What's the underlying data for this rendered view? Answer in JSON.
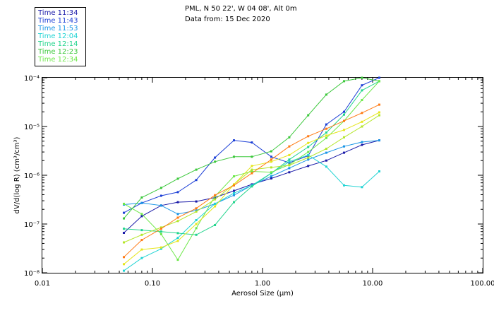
{
  "header": {
    "line1": "PML, N 50 22', W 04 08', Alt 0m",
    "line2": "Data from: 15 Dec 2020"
  },
  "chart_data": {
    "type": "line",
    "xscale": "log",
    "yscale": "log",
    "xlabel": "Aerosol Size (µm)",
    "ylabel": "dV/d(log R) (cm³/cm³)",
    "xlim": [
      0.01,
      100
    ],
    "ylim": [
      1e-08,
      0.0001
    ],
    "xticks": [
      {
        "value": 0.01,
        "label": "0.01"
      },
      {
        "value": 0.1,
        "label": "0.10"
      },
      {
        "value": 1,
        "label": "1.00"
      },
      {
        "value": 10,
        "label": "10.00"
      },
      {
        "value": 100,
        "label": "100.00"
      }
    ],
    "yticks": [
      {
        "value": 1e-08,
        "label": "10⁻⁸"
      },
      {
        "value": 1e-07,
        "label": "10⁻⁷"
      },
      {
        "value": 1e-06,
        "label": "10⁻⁶"
      },
      {
        "value": 1e-05,
        "label": "10⁻⁵"
      },
      {
        "value": 0.0001,
        "label": "10⁻⁴"
      }
    ],
    "legend_position": "top-left-outside",
    "grid": false,
    "series": [
      {
        "name": "Time 11:34",
        "color": "#1a1aa8",
        "points": [
          [
            0.055,
            6.6e-08
          ],
          [
            0.08,
            1.45e-07
          ],
          [
            0.12,
            2.4e-07
          ],
          [
            0.17,
            2.8e-07
          ],
          [
            0.25,
            2.9e-07
          ],
          [
            0.37,
            3.5e-07
          ],
          [
            0.55,
            4.8e-07
          ],
          [
            0.8,
            6.5e-07
          ],
          [
            1.2,
            8.6e-07
          ],
          [
            1.75,
            1.15e-06
          ],
          [
            2.6,
            1.55e-06
          ],
          [
            3.8,
            2e-06
          ],
          [
            5.5,
            2.9e-06
          ],
          [
            8,
            4.2e-06
          ],
          [
            11.5,
            5.2e-06
          ]
        ]
      },
      {
        "name": "Time 11:43",
        "color": "#1c3fd6",
        "points": [
          [
            0.055,
            1.7e-07
          ],
          [
            0.08,
            2.7e-07
          ],
          [
            0.12,
            3.8e-07
          ],
          [
            0.17,
            4.5e-07
          ],
          [
            0.25,
            8e-07
          ],
          [
            0.37,
            2.3e-06
          ],
          [
            0.55,
            5.2e-06
          ],
          [
            0.8,
            4.7e-06
          ],
          [
            1.2,
            2.4e-06
          ],
          [
            1.75,
            1.8e-06
          ],
          [
            2.6,
            2.5e-06
          ],
          [
            3.8,
            1.1e-05
          ],
          [
            5.5,
            2e-05
          ],
          [
            8,
            7e-05
          ],
          [
            11.5,
            0.0001
          ]
        ]
      },
      {
        "name": "Time 11:53",
        "color": "#1a96e6",
        "points": [
          [
            0.055,
            2.5e-07
          ],
          [
            0.08,
            2.7e-07
          ],
          [
            0.12,
            2.4e-07
          ],
          [
            0.17,
            1.6e-07
          ],
          [
            0.25,
            1.9e-07
          ],
          [
            0.37,
            2.6e-07
          ],
          [
            0.55,
            3.9e-07
          ],
          [
            0.8,
            6.2e-07
          ],
          [
            1.2,
            9.5e-07
          ],
          [
            1.75,
            1.4e-06
          ],
          [
            2.6,
            2.1e-06
          ],
          [
            3.8,
            2.9e-06
          ],
          [
            5.5,
            3.9e-06
          ],
          [
            8,
            4.8e-06
          ],
          [
            11.5,
            5.2e-06
          ]
        ]
      },
      {
        "name": "Time 12:04",
        "color": "#22d4d4",
        "points": [
          [
            0.055,
            1.1e-08
          ],
          [
            0.08,
            2e-08
          ],
          [
            0.12,
            3.1e-08
          ],
          [
            0.17,
            5.2e-08
          ],
          [
            0.25,
            1.2e-07
          ],
          [
            0.37,
            2.6e-07
          ],
          [
            0.55,
            4.3e-07
          ],
          [
            0.8,
            6.2e-07
          ],
          [
            1.2,
            1.1e-06
          ],
          [
            1.75,
            1.9e-06
          ],
          [
            2.6,
            2.6e-06
          ],
          [
            3.8,
            1.5e-06
          ],
          [
            5.5,
            6.2e-07
          ],
          [
            8,
            5.7e-07
          ],
          [
            11.5,
            1.2e-06
          ]
        ]
      },
      {
        "name": "Time 12:14",
        "color": "#22d48c",
        "points": [
          [
            0.055,
            8e-08
          ],
          [
            0.08,
            7.5e-08
          ],
          [
            0.12,
            7e-08
          ],
          [
            0.17,
            6.5e-08
          ],
          [
            0.25,
            6e-08
          ],
          [
            0.37,
            9.5e-08
          ],
          [
            0.55,
            2.8e-07
          ],
          [
            0.8,
            5.9e-07
          ],
          [
            1.2,
            1.1e-06
          ],
          [
            1.75,
            2.1e-06
          ],
          [
            2.6,
            3.8e-06
          ],
          [
            3.8,
            7.5e-06
          ],
          [
            5.5,
            1.75e-05
          ],
          [
            8,
            5.5e-05
          ],
          [
            11.5,
            8.5e-05
          ]
        ]
      },
      {
        "name": "Time 12:23",
        "color": "#3cc83c",
        "points": [
          [
            0.055,
            1.3e-07
          ],
          [
            0.08,
            3.5e-07
          ],
          [
            0.12,
            5.5e-07
          ],
          [
            0.17,
            8.5e-07
          ],
          [
            0.25,
            1.3e-06
          ],
          [
            0.37,
            1.9e-06
          ],
          [
            0.55,
            2.4e-06
          ],
          [
            0.8,
            2.4e-06
          ],
          [
            1.2,
            3.1e-06
          ],
          [
            1.75,
            6e-06
          ],
          [
            2.6,
            1.7e-05
          ],
          [
            3.8,
            4.5e-05
          ],
          [
            5.5,
            8.5e-05
          ],
          [
            8,
            0.0001
          ],
          [
            11.5,
            8.5e-05
          ]
        ]
      },
      {
        "name": "Time 12:34",
        "color": "#6ee84a",
        "points": [
          [
            0.055,
            2.6e-07
          ],
          [
            0.08,
            1.6e-07
          ],
          [
            0.12,
            6.2e-08
          ],
          [
            0.17,
            1.85e-08
          ],
          [
            0.25,
            8.2e-08
          ],
          [
            0.37,
            3.7e-07
          ],
          [
            0.55,
            9.5e-07
          ],
          [
            0.8,
            1.2e-06
          ],
          [
            1.2,
            1.15e-06
          ],
          [
            1.75,
            1.65e-06
          ],
          [
            2.6,
            3e-06
          ],
          [
            3.8,
            5.8e-06
          ],
          [
            5.5,
            1.3e-05
          ],
          [
            8,
            3.5e-05
          ],
          [
            11.5,
            8.5e-05
          ]
        ]
      },
      {
        "name": "",
        "color": "#b4e62a",
        "points": [
          [
            0.055,
            4.2e-08
          ],
          [
            0.08,
            6e-08
          ],
          [
            0.12,
            8.5e-08
          ],
          [
            0.17,
            1.15e-07
          ],
          [
            0.25,
            1.8e-07
          ],
          [
            0.37,
            3.2e-07
          ],
          [
            0.55,
            6.5e-07
          ],
          [
            0.8,
            1.3e-06
          ],
          [
            1.2,
            1.45e-06
          ],
          [
            1.75,
            1.6e-06
          ],
          [
            2.6,
            2.3e-06
          ],
          [
            3.8,
            3.5e-06
          ],
          [
            5.5,
            6e-06
          ],
          [
            8,
            1e-05
          ],
          [
            11.5,
            1.7e-05
          ]
        ]
      },
      {
        "name": "",
        "color": "#e6e61e",
        "points": [
          [
            0.055,
            1.5e-08
          ],
          [
            0.08,
            3e-08
          ],
          [
            0.12,
            3.3e-08
          ],
          [
            0.17,
            4.5e-08
          ],
          [
            0.25,
            1e-07
          ],
          [
            0.37,
            2.3e-07
          ],
          [
            0.55,
            6.5e-07
          ],
          [
            0.8,
            1.55e-06
          ],
          [
            1.2,
            1.9e-06
          ],
          [
            1.75,
            2.6e-06
          ],
          [
            2.6,
            4.6e-06
          ],
          [
            3.8,
            6.5e-06
          ],
          [
            5.5,
            8.5e-06
          ],
          [
            8,
            1.25e-05
          ],
          [
            11.5,
            1.95e-05
          ]
        ]
      },
      {
        "name": "",
        "color": "#ff7a14",
        "points": [
          [
            0.055,
            2.1e-08
          ],
          [
            0.08,
            4.7e-08
          ],
          [
            0.12,
            8e-08
          ],
          [
            0.17,
            1.35e-07
          ],
          [
            0.25,
            2.1e-07
          ],
          [
            0.37,
            3.9e-07
          ],
          [
            0.55,
            6.2e-07
          ],
          [
            0.8,
            1.1e-06
          ],
          [
            1.2,
            2.1e-06
          ],
          [
            1.75,
            3.9e-06
          ],
          [
            2.6,
            6.3e-06
          ],
          [
            3.8,
            9e-06
          ],
          [
            5.5,
            1.3e-05
          ],
          [
            8,
            1.9e-05
          ],
          [
            11.5,
            2.8e-05
          ]
        ]
      }
    ]
  }
}
